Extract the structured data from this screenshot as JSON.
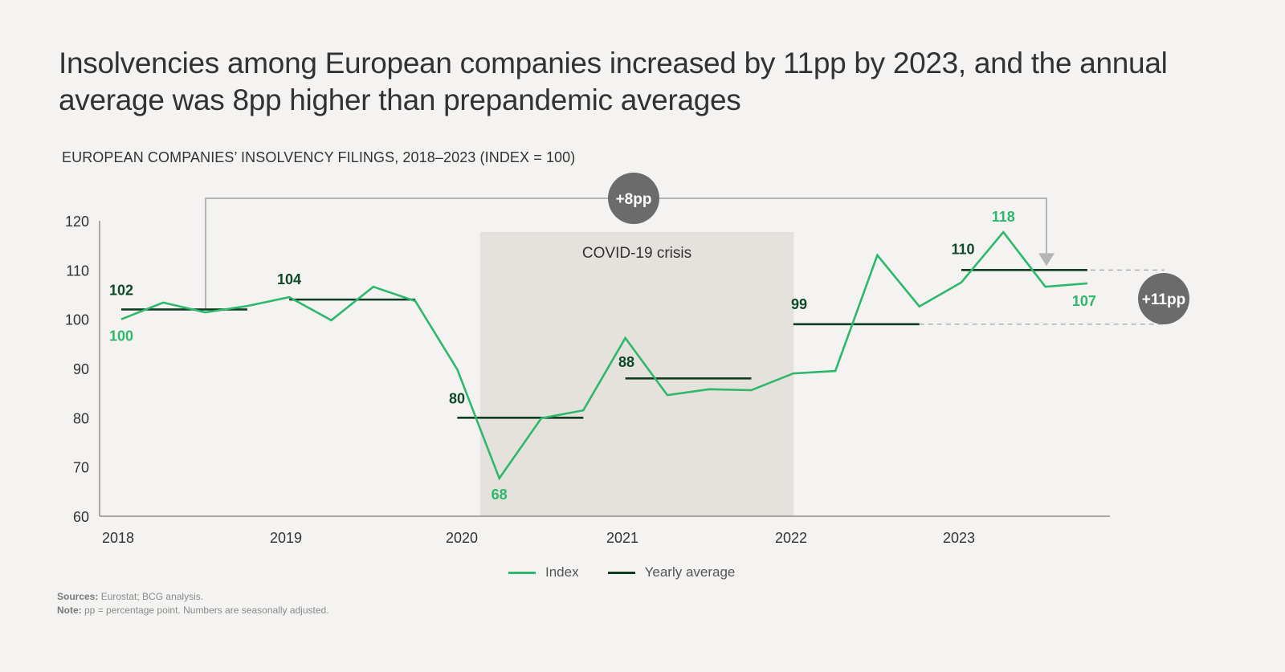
{
  "header": {
    "title": "Insolvencies among European companies increased by 11pp by 2023, and the annual average was 8pp higher than prepandemic averages",
    "subtitle": "EUROPEAN COMPANIES’ INSOLVENCY FILINGS, 2018–2023 (INDEX = 100)"
  },
  "colors": {
    "index_line": "#2db86c",
    "average_line": "#0f3d22",
    "average_label": "#0e4a2a",
    "index_label": "#2db86c",
    "covid_band": "#e5e1dc",
    "badge": "#6b6b6b",
    "connector": "#b5b5b5"
  },
  "chart_data": {
    "type": "line",
    "title": "EUROPEAN COMPANIES’ INSOLVENCY FILINGS, 2018–2023 (INDEX = 100)",
    "xlabel": "",
    "ylabel": "",
    "ylim": [
      60,
      120
    ],
    "yticks": [
      60,
      70,
      80,
      90,
      100,
      110,
      120
    ],
    "x_tick_labels": [
      "2018",
      "2019",
      "2020",
      "2021",
      "2022",
      "2023"
    ],
    "x": [
      "2018 Q1",
      "2018 Q2",
      "2018 Q3",
      "2018 Q4",
      "2019 Q1",
      "2019 Q2",
      "2019 Q3",
      "2019 Q4",
      "2020 Q1",
      "2020 Q2",
      "2020 Q3",
      "2020 Q4",
      "2021 Q1",
      "2021 Q2",
      "2021 Q3",
      "2021 Q4",
      "2022 Q1",
      "2022 Q2",
      "2022 Q3",
      "2022 Q4",
      "2023 Q1",
      "2023 Q2",
      "2023 Q3",
      "2023 Q4"
    ],
    "grid": false,
    "legend_position": "bottom-center",
    "series": [
      {
        "name": "Index",
        "values": [
          100,
          103.4,
          101.4,
          102.7,
          104.5,
          99.8,
          106.6,
          103.7,
          89.8,
          67.7,
          79.9,
          81.5,
          96.2,
          84.6,
          85.8,
          85.6,
          89.0,
          89.5,
          113.0,
          102.6,
          107.5,
          117.7,
          106.6,
          107.3
        ]
      },
      {
        "name": "Yearly average",
        "values": [
          {
            "year": "2018",
            "value": 102
          },
          {
            "year": "2019",
            "value": 104
          },
          {
            "year": "2020",
            "value": 80
          },
          {
            "year": "2021",
            "value": 88
          },
          {
            "year": "2022",
            "value": 99
          },
          {
            "year": "2023",
            "value": 110
          }
        ]
      }
    ],
    "average_labels": [
      "102",
      "104",
      "80",
      "88",
      "99",
      "110"
    ],
    "index_labels": [
      {
        "point": "2018 Q1",
        "text": "100"
      },
      {
        "point": "2020 Q2",
        "text": "68"
      },
      {
        "point": "2023 Q2",
        "text": "118"
      },
      {
        "point": "2023 Q4",
        "text": "107"
      }
    ],
    "annotations": {
      "shaded_region": {
        "label": "COVID-19 crisis",
        "from": "2020 Q2",
        "to": "2022 Q1"
      },
      "bracket": {
        "label": "+8pp",
        "from": "2018 average",
        "to": "2023 average"
      },
      "difference": {
        "label": "+11pp",
        "from_value": 99,
        "to_value": 110
      }
    }
  },
  "legend": {
    "items": [
      {
        "label": "Index"
      },
      {
        "label": "Yearly average"
      }
    ]
  },
  "footer": {
    "sources_label": "Sources:",
    "sources_text": " Eurostat; BCG analysis.",
    "note_label": "Note:",
    "note_text": " pp = percentage point. Numbers are seasonally adjusted."
  }
}
